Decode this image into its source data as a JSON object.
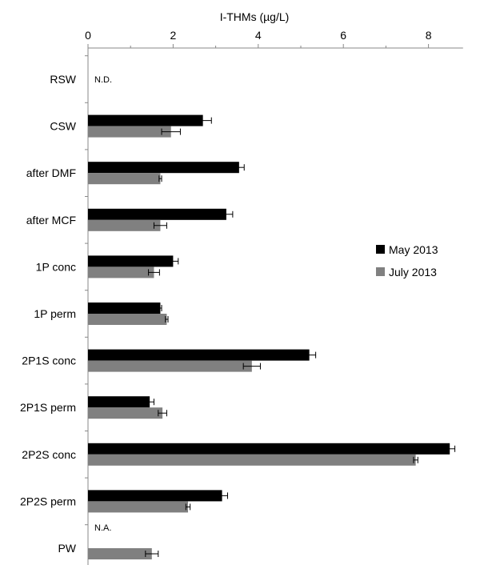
{
  "chart_data": {
    "type": "bar",
    "orientation": "horizontal",
    "xlabel": "I-THMs (µg/L)",
    "xlabel_position": "top",
    "xlim": [
      0,
      9
    ],
    "xticks": [
      0,
      2,
      4,
      6,
      8
    ],
    "grid": false,
    "legend_position": "right",
    "categories": [
      "RSW",
      "CSW",
      "after DMF",
      "after MCF",
      "1P conc",
      "1P perm",
      "2P1S conc",
      "2P1S perm",
      "2P2S conc",
      "2P2S perm",
      "PW"
    ],
    "series": [
      {
        "name": "May 2013",
        "color": "#000000",
        "values": [
          null,
          2.7,
          3.55,
          3.25,
          2.0,
          1.7,
          5.2,
          1.45,
          8.5,
          3.15,
          null
        ],
        "errors": [
          null,
          0.2,
          0.12,
          0.15,
          0.12,
          0.03,
          0.15,
          0.1,
          0.12,
          0.13,
          null
        ]
      },
      {
        "name": "July 2013",
        "color": "#808080",
        "values": [
          null,
          1.95,
          1.7,
          1.7,
          1.55,
          1.85,
          3.85,
          1.75,
          7.7,
          2.35,
          1.5
        ],
        "errors": [
          null,
          0.22,
          0.03,
          0.15,
          0.13,
          0.03,
          0.2,
          0.1,
          0.05,
          0.05,
          0.15
        ]
      }
    ],
    "annotations": [
      {
        "category": "RSW",
        "text": "N.D."
      },
      {
        "category": "PW",
        "text": "N.A."
      }
    ]
  }
}
